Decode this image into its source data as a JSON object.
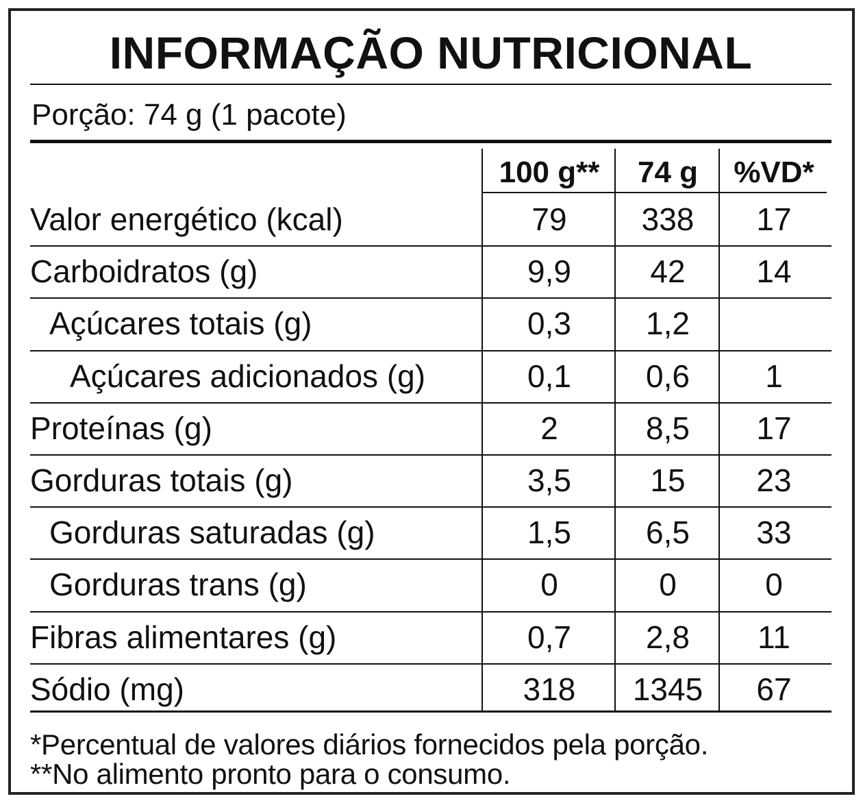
{
  "title": "INFORMAÇÃO NUTRICIONAL",
  "portion": "Porção: 74 g (1 pacote)",
  "columns": [
    "100 g**",
    "74 g",
    "%VD*"
  ],
  "rows": [
    {
      "name": "Valor energético (kcal)",
      "indent": 0,
      "per100": "79",
      "perPortion": "338",
      "vd": "17"
    },
    {
      "name": "Carboidratos (g)",
      "indent": 0,
      "per100": "9,9",
      "perPortion": "42",
      "vd": "14"
    },
    {
      "name": "Açúcares totais (g)",
      "indent": 1,
      "per100": "0,3",
      "perPortion": "1,2",
      "vd": ""
    },
    {
      "name": "Açúcares adicionados (g)",
      "indent": 2,
      "per100": "0,1",
      "perPortion": "0,6",
      "vd": "1"
    },
    {
      "name": "Proteínas (g)",
      "indent": 0,
      "per100": "2",
      "perPortion": "8,5",
      "vd": "17"
    },
    {
      "name": "Gorduras totais (g)",
      "indent": 0,
      "per100": "3,5",
      "perPortion": "15",
      "vd": "23"
    },
    {
      "name": "Gorduras saturadas (g)",
      "indent": 1,
      "per100": "1,5",
      "perPortion": "6,5",
      "vd": "33"
    },
    {
      "name": "Gorduras trans (g)",
      "indent": 1,
      "per100": "0",
      "perPortion": "0",
      "vd": "0"
    },
    {
      "name": "Fibras alimentares (g)",
      "indent": 0,
      "per100": "0,7",
      "perPortion": "2,8",
      "vd": "11"
    },
    {
      "name": "Sódio (mg)",
      "indent": 0,
      "per100": "318",
      "perPortion": "1345",
      "vd": "67"
    }
  ],
  "footnotes": [
    "*Percentual de valores diários fornecidos pela porção.",
    "**No alimento pronto para o consumo."
  ]
}
